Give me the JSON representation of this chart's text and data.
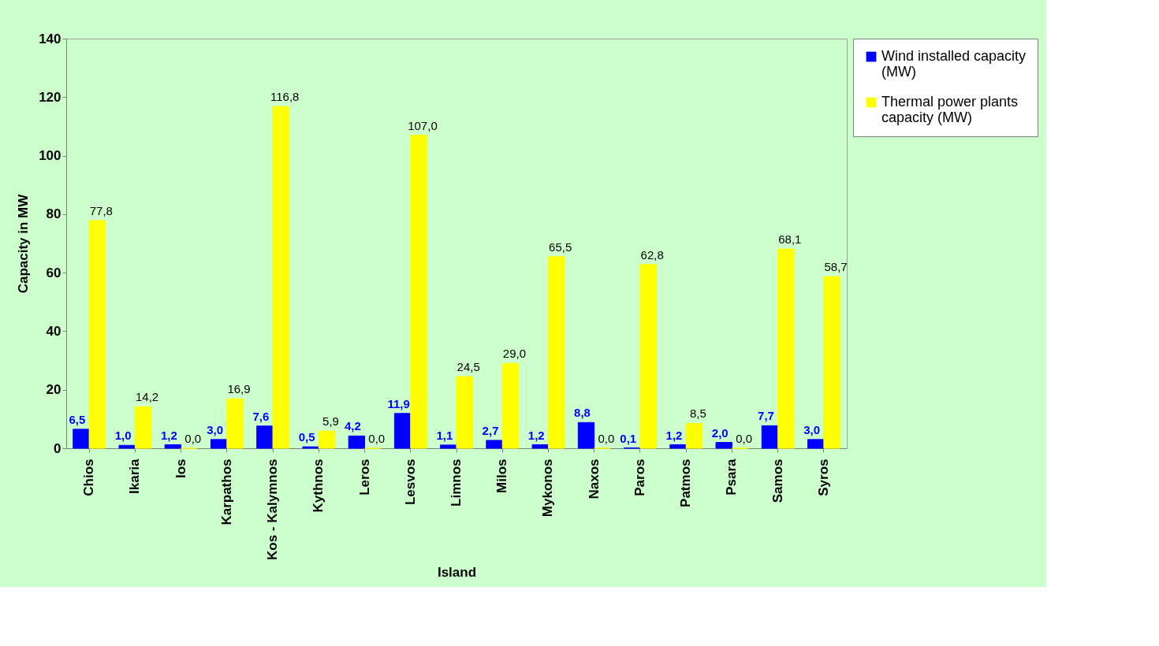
{
  "chart_data": {
    "type": "bar",
    "xlabel": "Island",
    "ylabel": "Capacity in MW",
    "categories": [
      "Chios",
      "Ikaria",
      "Ios",
      "Karpathos",
      "Kos - Kalymnos",
      "Kythnos",
      "Leros",
      "Lesvos",
      "Limnos",
      "Milos",
      "Mykonos",
      "Naxos",
      "Paros",
      "Patmos",
      "Psara",
      "Samos",
      "Syros"
    ],
    "series": [
      {
        "name": "Wind installed capacity (MW)",
        "color": "#0000ff",
        "values": [
          6.5,
          1.0,
          1.2,
          3.0,
          7.6,
          0.5,
          4.2,
          11.9,
          1.1,
          2.7,
          1.2,
          8.8,
          0.1,
          1.2,
          2.0,
          7.7,
          3.0
        ],
        "value_labels": [
          "6,5",
          "1,0",
          "1,2",
          "3,0",
          "7,6",
          "0,5",
          "4,2",
          "11,9",
          "1,1",
          "2,7",
          "1,2",
          "8,8",
          "0,1",
          "1,2",
          "2,0",
          "7,7",
          "3,0"
        ]
      },
      {
        "name": "Thermal power plants capacity (MW)",
        "color": "#ffff00",
        "values": [
          77.8,
          14.2,
          0.0,
          16.9,
          116.8,
          5.9,
          0.0,
          107.0,
          24.5,
          29.0,
          65.5,
          0.0,
          62.8,
          8.5,
          0.0,
          68.1,
          58.7
        ],
        "value_labels": [
          "77,8",
          "14,2",
          "0,0",
          "16,9",
          "116,8",
          "5,9",
          "0,0",
          "107,0",
          "24,5",
          "29,0",
          "65,5",
          "0,0",
          "62,8",
          "8,5",
          "0,0",
          "68,1",
          "58,7"
        ]
      }
    ],
    "ylim": [
      0,
      140
    ],
    "yticks": [
      0,
      20,
      40,
      60,
      80,
      100,
      120,
      140
    ],
    "grid": false,
    "legend": "right"
  }
}
